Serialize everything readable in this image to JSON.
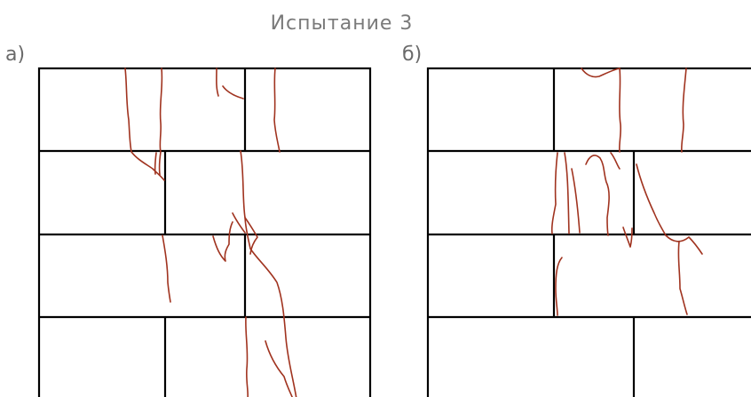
{
  "title": "Испытание 3",
  "panels": [
    {
      "id": "a",
      "label": "а)"
    },
    {
      "id": "b",
      "label": "б)"
    }
  ],
  "colors": {
    "mortar_lines": "#000000",
    "cracks": "#a0331f",
    "title_text": "#7a7a7a"
  }
}
